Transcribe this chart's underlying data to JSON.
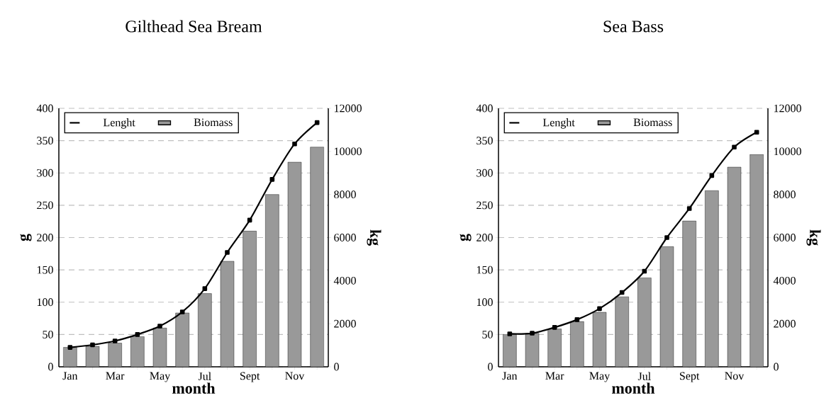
{
  "chart_data": [
    {
      "type": "line",
      "title": "Gilthead Sea Bream",
      "xlabel": "month",
      "ylabel": "g",
      "y2label": "kg",
      "categories": [
        "Jan",
        null,
        "Mar",
        null,
        "May",
        null,
        "Jul",
        null,
        "Sept",
        null,
        "Nov",
        null
      ],
      "series": [
        {
          "name": "Lenght",
          "color": "#000000",
          "values": [
            30,
            34,
            40,
            50,
            63,
            85,
            121,
            177,
            227,
            290,
            345,
            378
          ]
        },
        {
          "name": "Biomass",
          "type": "bar",
          "axis": "y2",
          "color": "#999999",
          "values": [
            900,
            950,
            1100,
            1400,
            1800,
            2500,
            3400,
            4900,
            6300,
            8000,
            9500,
            10200
          ]
        }
      ],
      "ylim": [
        0,
        400
      ],
      "yticks": [
        0,
        50,
        100,
        150,
        200,
        250,
        300,
        350,
        400
      ],
      "y2lim": [
        0,
        12000
      ],
      "y2ticks": [
        0,
        2000,
        4000,
        6000,
        8000,
        10000,
        12000
      ],
      "grid": "y",
      "legend": "top left",
      "marker": "square",
      "line_style": "solid"
    },
    {
      "type": "line",
      "title": "Sea Bass",
      "xlabel": "month",
      "ylabel": "g",
      "y2label": "kg",
      "categories": [
        "Jan",
        null,
        "Mar",
        null,
        "May",
        null,
        "Jul",
        null,
        "Sept",
        null,
        "Nov",
        null
      ],
      "series": [
        {
          "name": "Lenght",
          "color": "#000000",
          "values": [
            51,
            52,
            61,
            73,
            90,
            115,
            148,
            200,
            245,
            296,
            340,
            363
          ]
        },
        {
          "name": "Biomass",
          "type": "bar",
          "axis": "y2",
          "color": "#999999",
          "values": [
            1500,
            1550,
            1760,
            2100,
            2530,
            3250,
            4130,
            5580,
            6770,
            8180,
            9270,
            9860
          ]
        }
      ],
      "ylim": [
        0,
        400
      ],
      "yticks": [
        0,
        50,
        100,
        150,
        200,
        250,
        300,
        350,
        400
      ],
      "y2lim": [
        0,
        12000
      ],
      "y2ticks": [
        0,
        2000,
        4000,
        6000,
        8000,
        10000,
        12000
      ],
      "grid": "y",
      "legend": "top left",
      "marker": "square",
      "line_style": "solid"
    }
  ]
}
